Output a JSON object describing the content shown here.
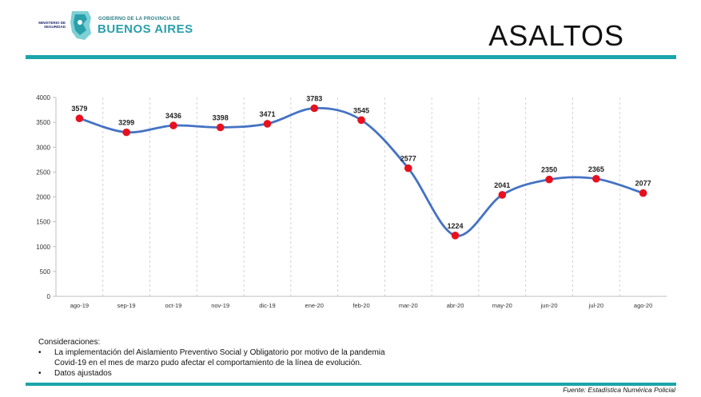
{
  "header": {
    "logo_left": "MINISTERIO DE SEGURIDAD",
    "logo_gov": "GOBIERNO DE LA PROVINCIA DE",
    "logo_ba": "BUENOS AIRES",
    "title": "ASALTOS"
  },
  "colors": {
    "accent": "#1aa5aa",
    "line": "#4472c4",
    "marker": "#e8101e"
  },
  "chart_data": {
    "type": "line",
    "categories": [
      "ago-19",
      "sep-19",
      "oct-19",
      "nov-19",
      "dic-19",
      "ene-20",
      "feb-20",
      "mar-20",
      "abr-20",
      "may-20",
      "jun-20",
      "jul-20",
      "ago-20"
    ],
    "values": [
      3579,
      3299,
      3436,
      3398,
      3471,
      3783,
      3545,
      2577,
      1224,
      2041,
      2350,
      2365,
      2077
    ],
    "ylim": [
      0,
      4000
    ],
    "yticks": [
      0,
      500,
      1000,
      1500,
      2000,
      2500,
      3000,
      3500,
      4000
    ],
    "grid": "vertical dashed",
    "data_labels": true
  },
  "notes": {
    "heading": "Consideraciones:",
    "item1": "La implementación del Aislamiento Preventivo Social y Obligatorio por motivo de la pandemia Covid-19 en el mes de marzo pudo afectar el comportamiento de la línea de evolución.",
    "item2": "Datos ajustados"
  },
  "source": "Fuente: Estadística Numérica Policial"
}
